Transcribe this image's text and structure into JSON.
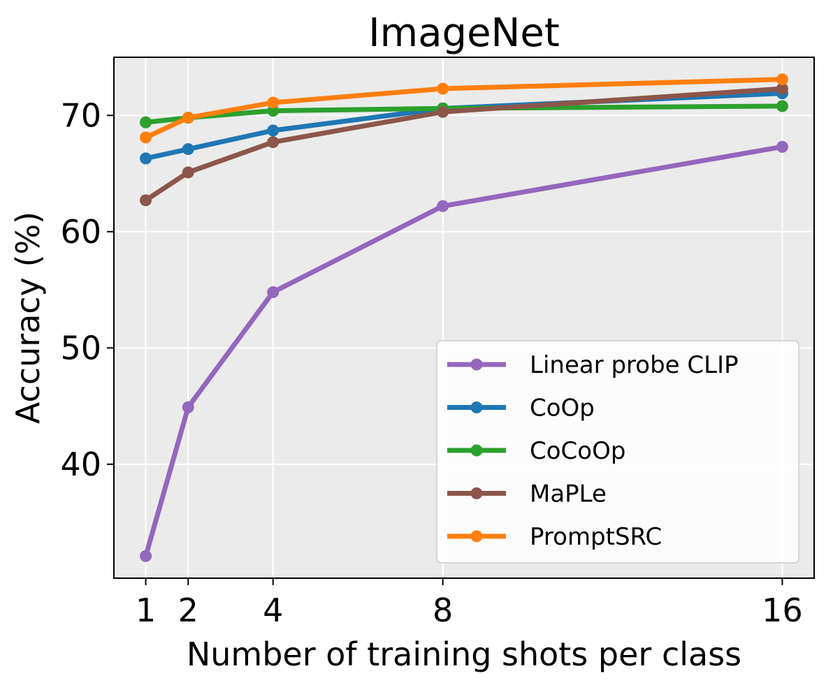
{
  "chart_data": {
    "type": "line",
    "title": "ImageNet",
    "xlabel": "Number of training shots per class",
    "ylabel": "Accuracy (%)",
    "x": [
      1,
      2,
      4,
      8,
      16
    ],
    "x_ticks": [
      1,
      2,
      4,
      8,
      16
    ],
    "y_ticks": [
      40,
      50,
      60,
      70
    ],
    "xlim": [
      0.25,
      16.75
    ],
    "ylim": [
      30.2,
      75.0
    ],
    "grid": true,
    "legend_position": "lower-right",
    "series": [
      {
        "name": "Linear probe CLIP",
        "color": "#9467bd",
        "values": [
          32.1,
          44.9,
          54.8,
          62.2,
          67.3
        ]
      },
      {
        "name": "CoOp",
        "color": "#1f77b4",
        "values": [
          66.3,
          67.1,
          68.7,
          70.6,
          71.9
        ]
      },
      {
        "name": "CoCoOp",
        "color": "#2ca02c",
        "values": [
          69.4,
          69.8,
          70.4,
          70.6,
          70.8
        ]
      },
      {
        "name": "MaPLe",
        "color": "#8c564b",
        "values": [
          62.7,
          65.1,
          67.7,
          70.3,
          72.3
        ]
      },
      {
        "name": "PromptSRC",
        "color": "#ff7f0e",
        "values": [
          68.1,
          69.8,
          71.1,
          72.3,
          73.1
        ]
      }
    ]
  }
}
